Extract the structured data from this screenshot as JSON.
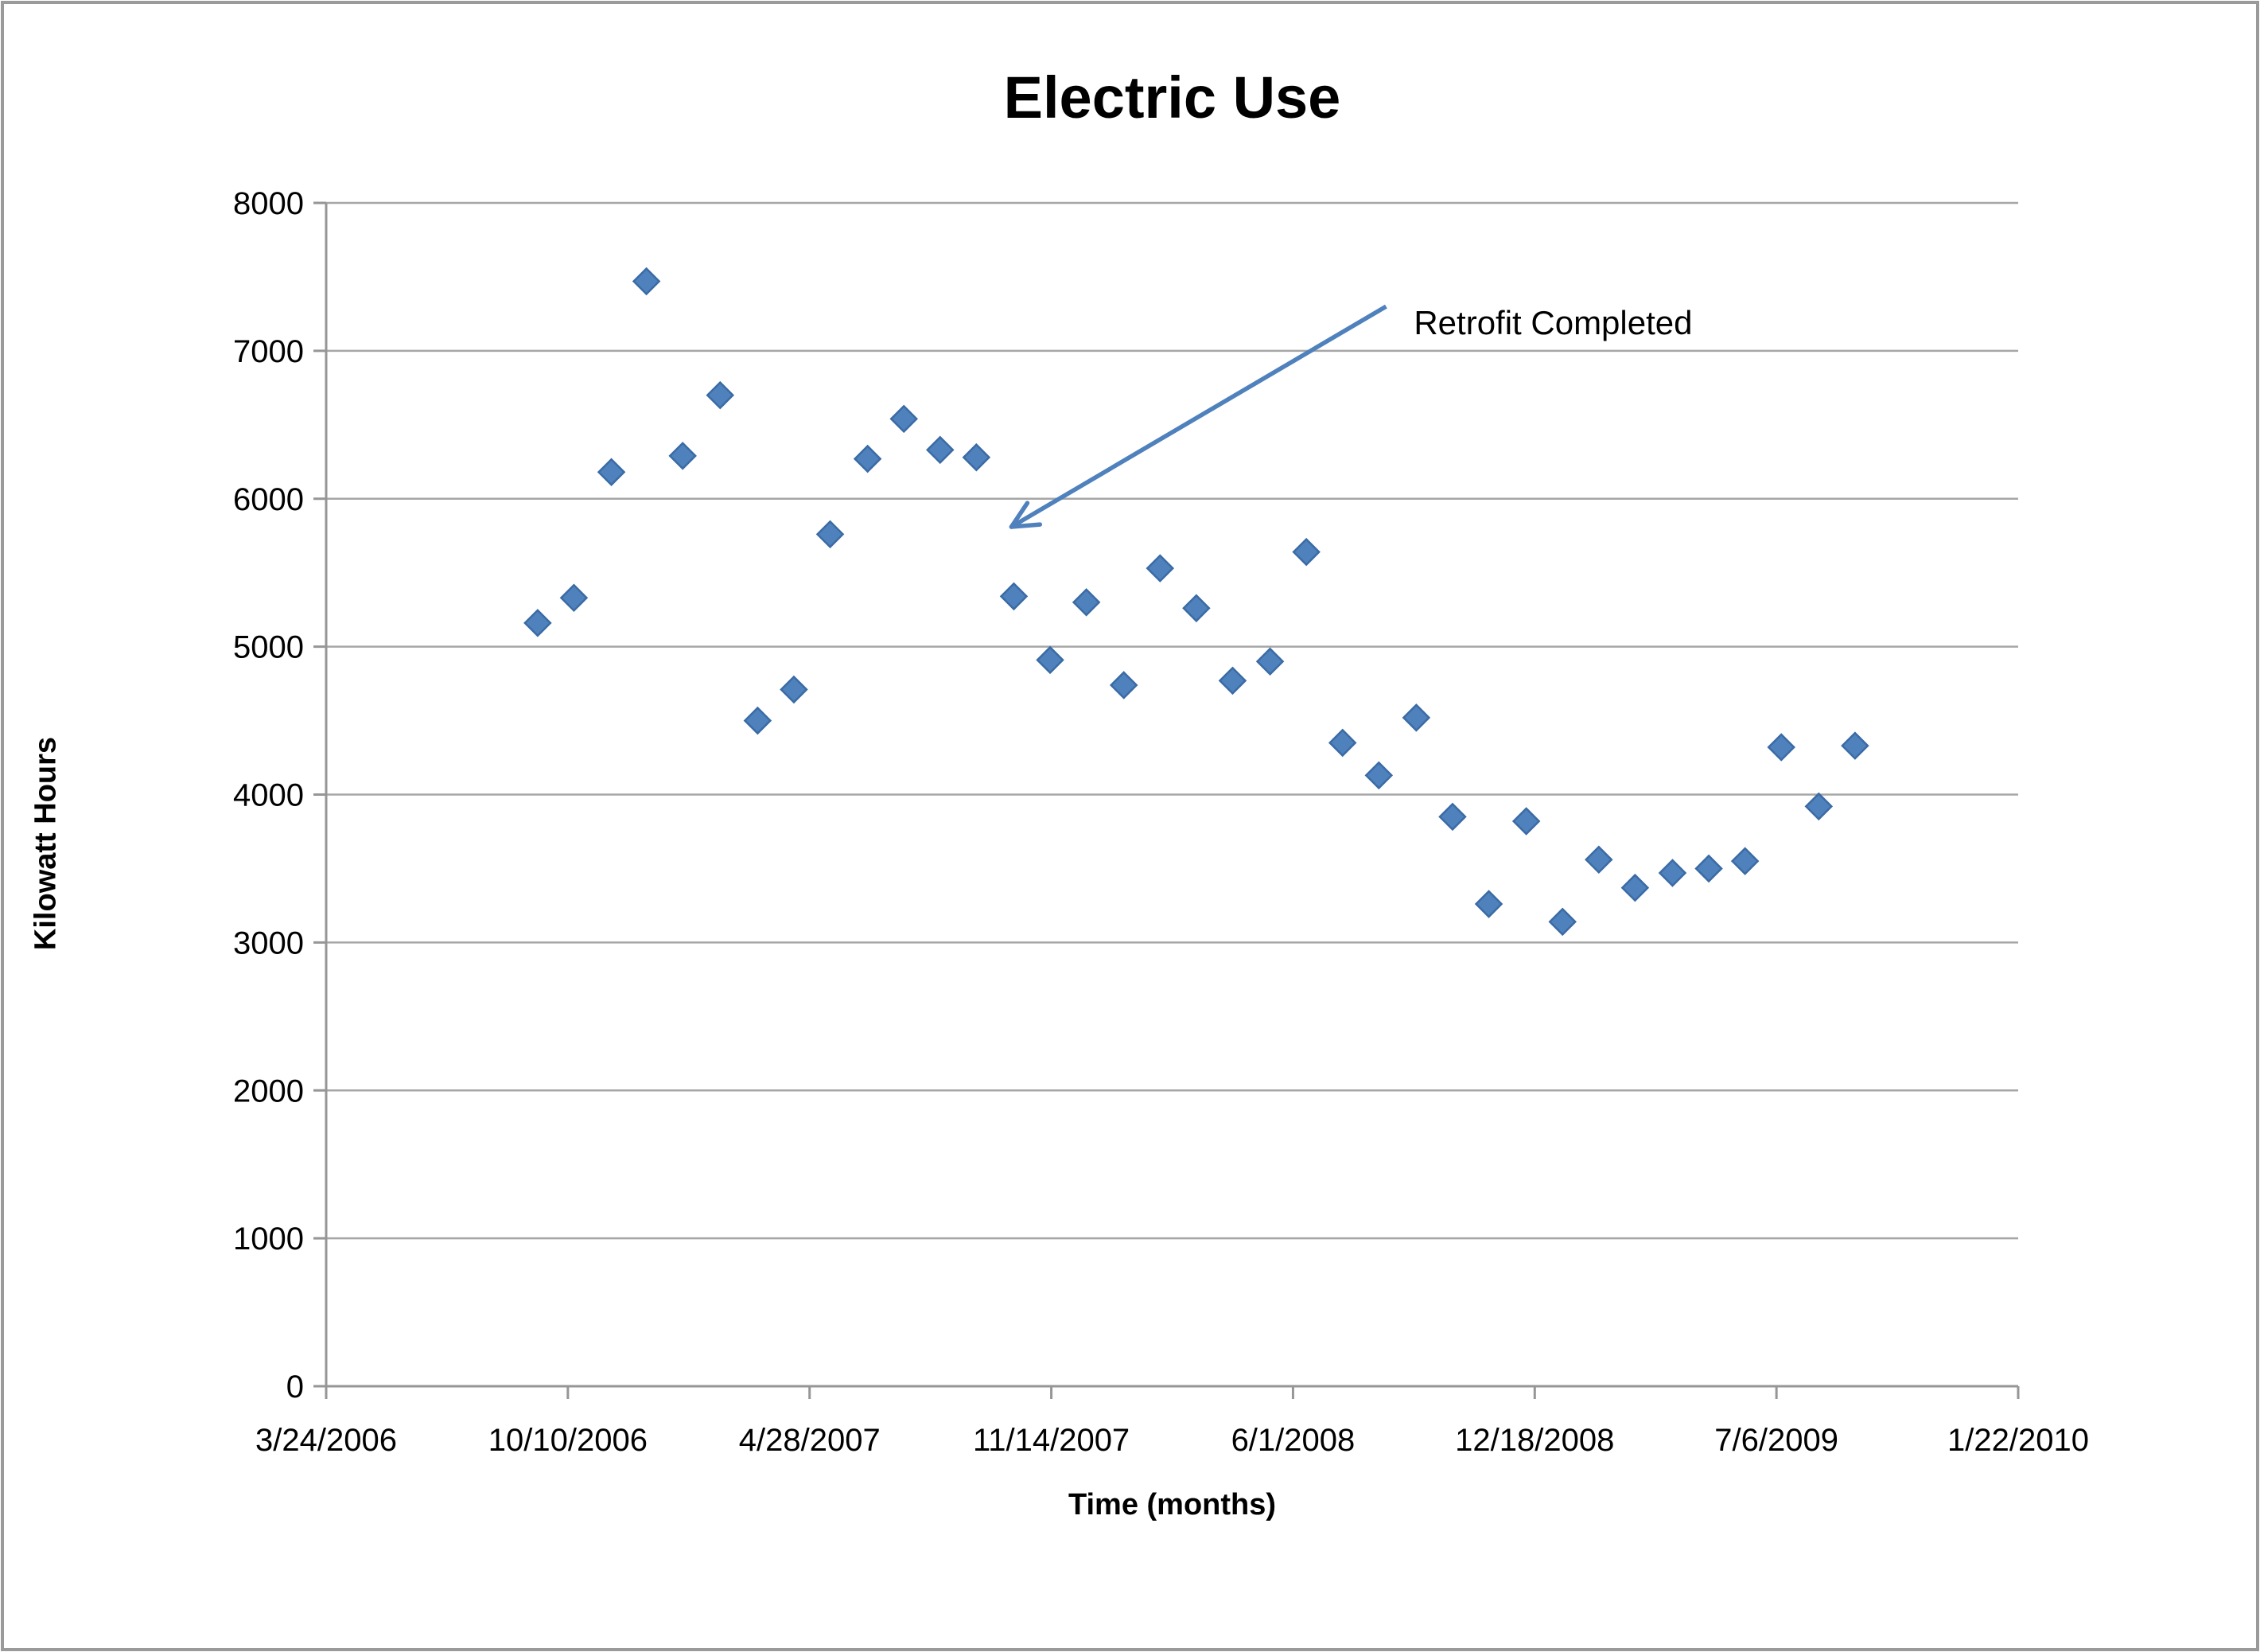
{
  "page": {
    "background": "#FFFFFF",
    "border_color": "#9A9A9A"
  },
  "chart_data": {
    "type": "scatter",
    "title": "Electric Use",
    "xlabel": "Time (months)",
    "ylabel": "Kilowatt Hours",
    "grid": "horizontal",
    "legend": "none",
    "marker": {
      "shape": "diamond",
      "fill": "#4F81BD",
      "stroke": "#3A6BA5"
    },
    "colors": {
      "gridline": "#A6A6A6",
      "axis": "#969696",
      "text": "#000000",
      "arrow": "#4F81BD"
    },
    "x_axis": {
      "min": "3/24/2006",
      "max": "1/22/2010",
      "tick_labels": [
        "3/24/2006",
        "10/10/2006",
        "4/28/2007",
        "11/14/2007",
        "6/1/2008",
        "12/18/2008",
        "7/6/2009",
        "1/22/2010"
      ]
    },
    "y_axis": {
      "min": 0,
      "max": 8000,
      "step": 1000,
      "tick_labels": [
        "0",
        "1000",
        "2000",
        "3000",
        "4000",
        "5000",
        "6000",
        "7000",
        "8000"
      ]
    },
    "annotation": {
      "text": "Retrofit Completed",
      "anchor": {
        "date": "9/9/2008",
        "kwh": 7190
      },
      "arrow": {
        "from": {
          "date": "8/17/2008",
          "kwh": 7300
        },
        "to": {
          "date": "10/12/2007",
          "kwh": 5810
        }
      }
    },
    "points": [
      {
        "date": "9/15/2006",
        "kwh": 5160
      },
      {
        "date": "10/15/2006",
        "kwh": 5330
      },
      {
        "date": "11/15/2006",
        "kwh": 6180
      },
      {
        "date": "12/14/2006",
        "kwh": 7470
      },
      {
        "date": "1/13/2007",
        "kwh": 6290
      },
      {
        "date": "2/13/2007",
        "kwh": 6700
      },
      {
        "date": "3/16/2007",
        "kwh": 4500
      },
      {
        "date": "4/15/2007",
        "kwh": 4710
      },
      {
        "date": "5/15/2007",
        "kwh": 5760
      },
      {
        "date": "6/15/2007",
        "kwh": 6270
      },
      {
        "date": "7/15/2007",
        "kwh": 6540
      },
      {
        "date": "8/14/2007",
        "kwh": 6330
      },
      {
        "date": "9/13/2007",
        "kwh": 6280
      },
      {
        "date": "10/14/2007",
        "kwh": 5340
      },
      {
        "date": "11/13/2007",
        "kwh": 4910
      },
      {
        "date": "12/13/2007",
        "kwh": 5300
      },
      {
        "date": "1/13/2008",
        "kwh": 4740
      },
      {
        "date": "2/12/2008",
        "kwh": 5530
      },
      {
        "date": "3/13/2008",
        "kwh": 5260
      },
      {
        "date": "4/12/2008",
        "kwh": 4770
      },
      {
        "date": "5/13/2008",
        "kwh": 4900
      },
      {
        "date": "6/12/2008",
        "kwh": 5640
      },
      {
        "date": "7/12/2008",
        "kwh": 4350
      },
      {
        "date": "8/11/2008",
        "kwh": 4130
      },
      {
        "date": "9/11/2008",
        "kwh": 4520
      },
      {
        "date": "10/11/2008",
        "kwh": 3850
      },
      {
        "date": "11/10/2008",
        "kwh": 3260
      },
      {
        "date": "12/11/2008",
        "kwh": 3820
      },
      {
        "date": "1/10/2009",
        "kwh": 3140
      },
      {
        "date": "2/9/2009",
        "kwh": 3560
      },
      {
        "date": "3/11/2009",
        "kwh": 3370
      },
      {
        "date": "4/11/2009",
        "kwh": 3470
      },
      {
        "date": "5/11/2009",
        "kwh": 3500
      },
      {
        "date": "6/10/2009",
        "kwh": 3550
      },
      {
        "date": "7/10/2009",
        "kwh": 4320
      },
      {
        "date": "8/10/2009",
        "kwh": 3920
      },
      {
        "date": "9/9/2009",
        "kwh": 4330
      }
    ]
  }
}
